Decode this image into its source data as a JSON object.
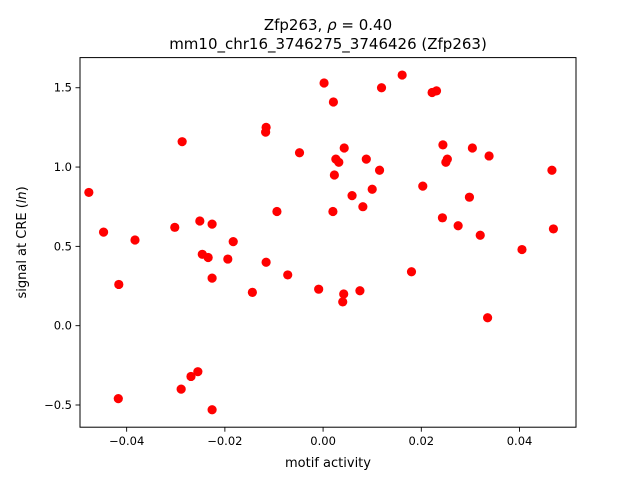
{
  "chart_data": {
    "type": "scatter",
    "title_line1_prefix": "Zfp263, ",
    "title_rho_symbol": "ρ",
    "title_rho_value": " = 0.40",
    "title_line2": "mm10_chr16_3746275_3746426 (Zfp263)",
    "xlabel": "motif activity",
    "ylabel_prefix": "signal at CRE (",
    "ylabel_italic": "ln",
    "ylabel_suffix": ")",
    "xlim": [
      -0.0495,
      0.0515
    ],
    "ylim": [
      -0.64,
      1.69
    ],
    "xticks": [
      -0.04,
      -0.02,
      0.0,
      0.02,
      0.04
    ],
    "xtick_labels": [
      "−0.04",
      "−0.02",
      "0.00",
      "0.02",
      "0.04"
    ],
    "yticks": [
      -0.5,
      0.0,
      0.5,
      1.0,
      1.5
    ],
    "ytick_labels": [
      "−0.5",
      "0.0",
      "0.5",
      "1.0",
      "1.5"
    ],
    "grid": false,
    "marker_color": "#ff0000",
    "points": [
      {
        "x": -0.0477,
        "y": 0.84
      },
      {
        "x": -0.0447,
        "y": 0.59
      },
      {
        "x": -0.0416,
        "y": 0.26
      },
      {
        "x": -0.0417,
        "y": -0.46
      },
      {
        "x": -0.0383,
        "y": 0.54
      },
      {
        "x": -0.0302,
        "y": 0.62
      },
      {
        "x": -0.0287,
        "y": 1.16
      },
      {
        "x": -0.0289,
        "y": -0.4
      },
      {
        "x": -0.0269,
        "y": -0.32
      },
      {
        "x": -0.0255,
        "y": -0.29
      },
      {
        "x": -0.0251,
        "y": 0.66
      },
      {
        "x": -0.0246,
        "y": 0.45
      },
      {
        "x": -0.0234,
        "y": 0.43
      },
      {
        "x": -0.0226,
        "y": 0.64
      },
      {
        "x": -0.0226,
        "y": 0.3
      },
      {
        "x": -0.0226,
        "y": -0.53
      },
      {
        "x": -0.0194,
        "y": 0.42
      },
      {
        "x": -0.0183,
        "y": 0.53
      },
      {
        "x": -0.0144,
        "y": 0.21
      },
      {
        "x": -0.0116,
        "y": 1.25
      },
      {
        "x": -0.0117,
        "y": 1.22
      },
      {
        "x": -0.0116,
        "y": 0.4
      },
      {
        "x": -0.0094,
        "y": 0.72
      },
      {
        "x": -0.0072,
        "y": 0.32
      },
      {
        "x": -0.0048,
        "y": 1.09
      },
      {
        "x": -0.0009,
        "y": 0.23
      },
      {
        "x": 0.0002,
        "y": 1.53
      },
      {
        "x": 0.0021,
        "y": 1.41
      },
      {
        "x": 0.002,
        "y": 0.72
      },
      {
        "x": 0.0023,
        "y": 0.95
      },
      {
        "x": 0.0026,
        "y": 1.05
      },
      {
        "x": 0.0032,
        "y": 1.03
      },
      {
        "x": 0.004,
        "y": 0.15
      },
      {
        "x": 0.0042,
        "y": 0.2
      },
      {
        "x": 0.0043,
        "y": 1.12
      },
      {
        "x": 0.0059,
        "y": 0.82
      },
      {
        "x": 0.0075,
        "y": 0.22
      },
      {
        "x": 0.0081,
        "y": 0.75
      },
      {
        "x": 0.0088,
        "y": 1.05
      },
      {
        "x": 0.01,
        "y": 0.86
      },
      {
        "x": 0.0115,
        "y": 0.98
      },
      {
        "x": 0.0119,
        "y": 1.5
      },
      {
        "x": 0.0161,
        "y": 1.58
      },
      {
        "x": 0.018,
        "y": 0.34
      },
      {
        "x": 0.0203,
        "y": 0.88
      },
      {
        "x": 0.0222,
        "y": 1.47
      },
      {
        "x": 0.0231,
        "y": 1.48
      },
      {
        "x": 0.0243,
        "y": 0.68
      },
      {
        "x": 0.0244,
        "y": 1.14
      },
      {
        "x": 0.025,
        "y": 1.03
      },
      {
        "x": 0.0253,
        "y": 1.05
      },
      {
        "x": 0.0275,
        "y": 0.63
      },
      {
        "x": 0.0298,
        "y": 0.81
      },
      {
        "x": 0.0304,
        "y": 1.12
      },
      {
        "x": 0.032,
        "y": 0.57
      },
      {
        "x": 0.0335,
        "y": 0.05
      },
      {
        "x": 0.0338,
        "y": 1.07
      },
      {
        "x": 0.0405,
        "y": 0.48
      },
      {
        "x": 0.0466,
        "y": 0.98
      },
      {
        "x": 0.0469,
        "y": 0.61
      }
    ]
  }
}
